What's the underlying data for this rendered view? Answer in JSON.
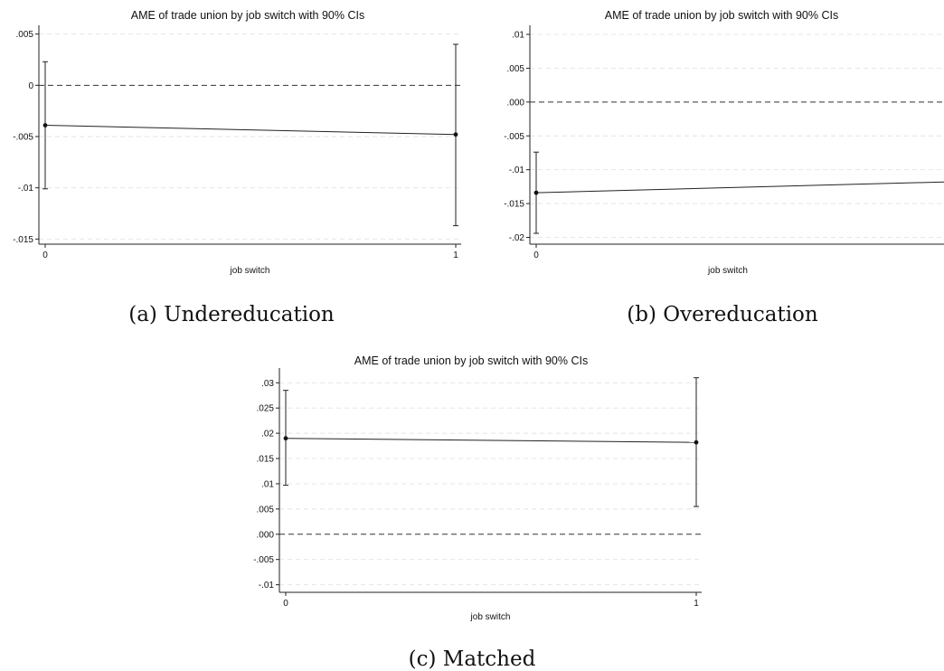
{
  "chart_data": [
    {
      "type": "line",
      "title": "AME of trade union by job switch with 90% CIs",
      "xlabel": "job switch",
      "ylabel": "",
      "caption": "(a) Undereducation",
      "x": [
        0,
        1
      ],
      "x_ticks": [
        "0",
        "1"
      ],
      "ylim": [
        -0.0155,
        0.0055
      ],
      "y_ticks": [
        0.005,
        0,
        -0.005,
        -0.01,
        -0.015
      ],
      "y_tick_labels": [
        ".005",
        "0",
        "-.005",
        "-.01",
        "-.015"
      ],
      "reference_line": 0,
      "grid": true,
      "series": [
        {
          "values": [
            -0.0039,
            -0.0048
          ],
          "ci_low": [
            -0.0101,
            -0.0137
          ],
          "ci_high": [
            0.0023,
            0.004
          ]
        }
      ]
    },
    {
      "type": "line",
      "title": "AME of trade union by job switch with 90% CIs",
      "xlabel": "job switch",
      "ylabel": "",
      "caption": "(b) Overeducation",
      "x": [
        0,
        1
      ],
      "x_ticks": [
        "0"
      ],
      "ylim": [
        -0.021,
        0.0108
      ],
      "y_ticks": [
        0.01,
        0.005,
        0,
        -0.005,
        -0.01,
        -0.015,
        -0.02
      ],
      "y_tick_labels": [
        ".01",
        ".005",
        ".000",
        "-.005",
        "-.01",
        "-.015",
        "-.02"
      ],
      "reference_line": 0,
      "grid": true,
      "series": [
        {
          "values": [
            -0.0134,
            -0.0118
          ],
          "ci_low": [
            -0.0194,
            null
          ],
          "ci_high": [
            -0.0074,
            null
          ]
        }
      ]
    },
    {
      "type": "line",
      "title": "AME of trade union by job switch with 90% CIs",
      "xlabel": "job switch",
      "ylabel": "",
      "caption": "(c) Matched",
      "x": [
        0,
        1
      ],
      "x_ticks": [
        "0",
        "1"
      ],
      "ylim": [
        -0.0115,
        0.0322
      ],
      "y_ticks": [
        0.03,
        0.025,
        0.02,
        0.015,
        0.01,
        0.005,
        0,
        -0.005,
        -0.01
      ],
      "y_tick_labels": [
        ".03",
        ".025",
        ".02",
        ".015",
        ".01",
        ".005",
        ".000",
        "-.005",
        "-.01"
      ],
      "reference_line": 0,
      "grid": true,
      "series": [
        {
          "values": [
            0.019,
            0.0182
          ],
          "ci_low": [
            0.0097,
            0.0055
          ],
          "ci_high": [
            0.0285,
            0.031
          ]
        }
      ]
    }
  ]
}
